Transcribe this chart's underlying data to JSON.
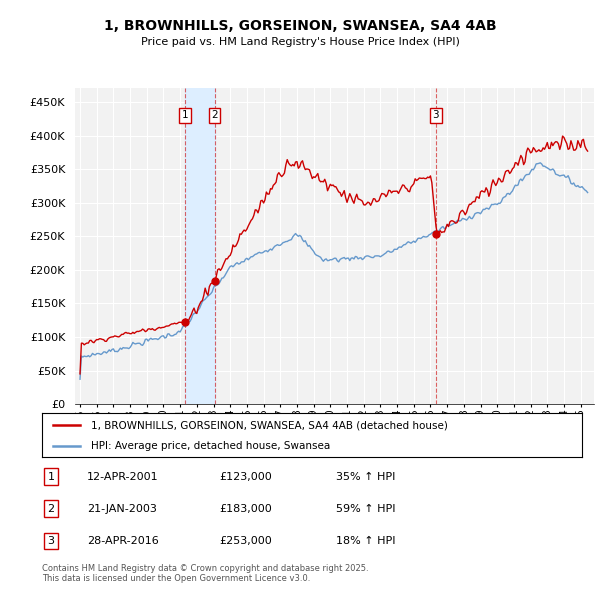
{
  "title": "1, BROWNHILLS, GORSEINON, SWANSEA, SA4 4AB",
  "subtitle": "Price paid vs. HM Land Registry's House Price Index (HPI)",
  "ylim": [
    0,
    470000
  ],
  "yticks": [
    0,
    50000,
    100000,
    150000,
    200000,
    250000,
    300000,
    350000,
    400000,
    450000
  ],
  "background_color": "#ffffff",
  "plot_bg_color": "#f2f2f2",
  "grid_color": "#ffffff",
  "red_color": "#cc0000",
  "blue_color": "#6699cc",
  "shade_color": "#ddeeff",
  "legend_entries": [
    "1, BROWNHILLS, GORSEINON, SWANSEA, SA4 4AB (detached house)",
    "HPI: Average price, detached house, Swansea"
  ],
  "table_rows": [
    {
      "num": "1",
      "date": "12-APR-2001",
      "price": "£123,000",
      "change": "35% ↑ HPI"
    },
    {
      "num": "2",
      "date": "21-JAN-2003",
      "price": "£183,000",
      "change": "59% ↑ HPI"
    },
    {
      "num": "3",
      "date": "28-APR-2016",
      "price": "£253,000",
      "change": "18% ↑ HPI"
    }
  ],
  "footer": "Contains HM Land Registry data © Crown copyright and database right 2025.\nThis data is licensed under the Open Government Licence v3.0.",
  "x_start_year": 1995,
  "x_end_year": 2025,
  "transactions": [
    {
      "label": "1",
      "year": 2001.28,
      "price": 123000
    },
    {
      "label": "2",
      "year": 2003.06,
      "price": 183000
    },
    {
      "label": "3",
      "year": 2016.33,
      "price": 253000
    }
  ]
}
